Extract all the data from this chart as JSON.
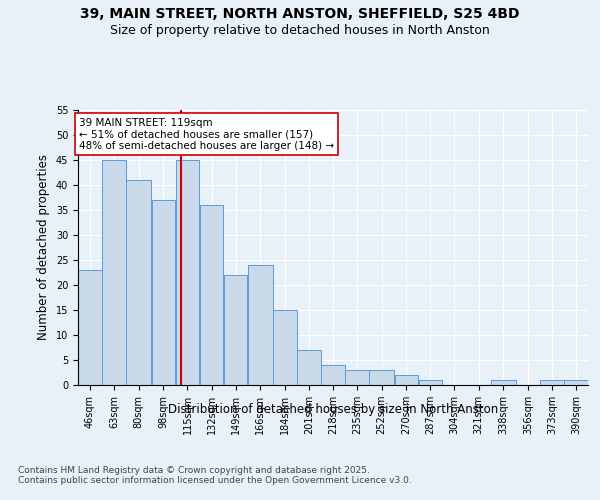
{
  "title": "39, MAIN STREET, NORTH ANSTON, SHEFFIELD, S25 4BD",
  "subtitle": "Size of property relative to detached houses in North Anston",
  "xlabel": "Distribution of detached houses by size in North Anston",
  "ylabel": "Number of detached properties",
  "bin_labels": [
    "46sqm",
    "63sqm",
    "80sqm",
    "98sqm",
    "115sqm",
    "132sqm",
    "149sqm",
    "166sqm",
    "184sqm",
    "201sqm",
    "218sqm",
    "235sqm",
    "252sqm",
    "270sqm",
    "287sqm",
    "304sqm",
    "321sqm",
    "338sqm",
    "356sqm",
    "373sqm",
    "390sqm"
  ],
  "bin_edges": [
    46,
    63,
    80,
    98,
    115,
    132,
    149,
    166,
    184,
    201,
    218,
    235,
    252,
    270,
    287,
    304,
    321,
    338,
    356,
    373,
    390
  ],
  "bar_heights": [
    23,
    45,
    41,
    37,
    45,
    36,
    22,
    24,
    15,
    7,
    4,
    3,
    3,
    2,
    1,
    0,
    0,
    1,
    0,
    1,
    1
  ],
  "bar_color": "#c9d9ea",
  "bar_edgecolor": "#5b9bd5",
  "background_color": "#dde8f0",
  "plot_bg_color": "#e8f0f8",
  "grid_color": "#ffffff",
  "fig_bg_color": "#e8f0f8",
  "vline_x": 119,
  "vline_color": "#cc0000",
  "annotation_title": "39 MAIN STREET: 119sqm",
  "annotation_line1": "← 51% of detached houses are smaller (157)",
  "annotation_line2": "48% of semi-detached houses are larger (148) →",
  "annotation_box_color": "#ffffff",
  "annotation_box_edgecolor": "#cc0000",
  "ylim": [
    0,
    55
  ],
  "yticks": [
    0,
    5,
    10,
    15,
    20,
    25,
    30,
    35,
    40,
    45,
    50,
    55
  ],
  "footer_line1": "Contains HM Land Registry data © Crown copyright and database right 2025.",
  "footer_line2": "Contains public sector information licensed under the Open Government Licence v3.0.",
  "title_fontsize": 10,
  "subtitle_fontsize": 9,
  "axis_label_fontsize": 8.5,
  "tick_fontsize": 7,
  "annotation_fontsize": 7.5,
  "footer_fontsize": 6.5
}
